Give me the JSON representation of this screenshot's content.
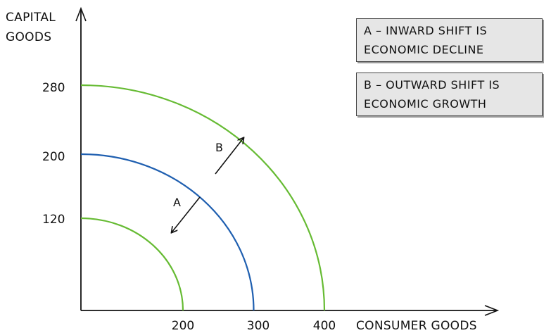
{
  "chart_data": {
    "type": "line",
    "title": "",
    "xlabel": "CONSUMER GOODS",
    "ylabel_lines": [
      "CAPITAL",
      "GOODS"
    ],
    "x_ticks": [
      200,
      300,
      400
    ],
    "y_ticks": [
      120,
      200,
      280
    ],
    "xlim": [
      0,
      480
    ],
    "ylim": [
      0,
      340
    ],
    "grid": false,
    "series": [
      {
        "color": "#66bb33",
        "x_intercept": 200,
        "y_intercept": 120
      },
      {
        "color": "#1f5fb0",
        "x_intercept": 300,
        "y_intercept": 200
      },
      {
        "color": "#66bb33",
        "x_intercept": 400,
        "y_intercept": 280
      }
    ],
    "annotations": [
      {
        "label": "A",
        "direction": "inward"
      },
      {
        "label": "B",
        "direction": "outward"
      }
    ]
  },
  "notes": [
    {
      "line1": "A – INWARD SHIFT IS",
      "line2": "ECONOMIC DECLINE"
    },
    {
      "line1": "B – OUTWARD SHIFT IS",
      "line2": "ECONOMIC GROWTH"
    }
  ],
  "colors": {
    "curve_green": "#66bb33",
    "curve_blue": "#1f5fb0",
    "axis": "#111111",
    "note_background": "#e6e6e6"
  }
}
